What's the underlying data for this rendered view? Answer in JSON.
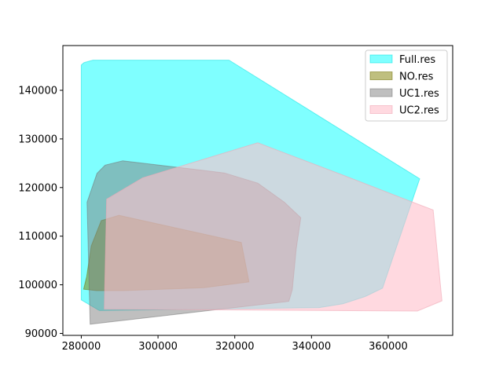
{
  "chart_data": {
    "type": "area",
    "title": "",
    "xlabel": "",
    "ylabel": "",
    "xlim": [
      275200,
      376800
    ],
    "ylim": [
      89600,
      149200
    ],
    "xticks": [
      {
        "value": 280000,
        "label": "280000"
      },
      {
        "value": 300000,
        "label": "300000"
      },
      {
        "value": 320000,
        "label": "320000"
      },
      {
        "value": 340000,
        "label": "340000"
      },
      {
        "value": 360000,
        "label": "360000"
      }
    ],
    "yticks": [
      {
        "value": 90000,
        "label": "90000"
      },
      {
        "value": 100000,
        "label": "100000"
      },
      {
        "value": 110000,
        "label": "110000"
      },
      {
        "value": 120000,
        "label": "120000"
      },
      {
        "value": 130000,
        "label": "130000"
      },
      {
        "value": 140000,
        "label": "140000"
      }
    ],
    "grid": false,
    "legend_position": "top-right",
    "series": [
      {
        "name": "Full.res",
        "fill": "#00ffff",
        "stroke": "#00e0e0",
        "alpha": 0.5,
        "points": [
          [
            280000,
            145200
          ],
          [
            280700,
            145700
          ],
          [
            283000,
            146200
          ],
          [
            318500,
            146200
          ],
          [
            368200,
            121800
          ],
          [
            358500,
            99300
          ],
          [
            354000,
            97600
          ],
          [
            348200,
            96100
          ],
          [
            341900,
            95300
          ],
          [
            284700,
            94700
          ],
          [
            280000,
            96900
          ]
        ]
      },
      {
        "name": "NO.res",
        "fill": "#808000",
        "stroke": "#6e6e00",
        "alpha": 0.5,
        "points": [
          [
            280600,
            99100
          ],
          [
            281400,
            101700
          ],
          [
            282600,
            108000
          ],
          [
            285200,
            113200
          ],
          [
            289800,
            114300
          ],
          [
            321700,
            108700
          ],
          [
            323700,
            100600
          ],
          [
            312000,
            99400
          ],
          [
            291000,
            98800
          ],
          [
            284000,
            98800
          ]
        ]
      },
      {
        "name": "UC1.res",
        "fill": "#808080",
        "stroke": "#707070",
        "alpha": 0.5,
        "points": [
          [
            281500,
            117000
          ],
          [
            284100,
            122900
          ],
          [
            286200,
            124600
          ],
          [
            290800,
            125500
          ],
          [
            317300,
            123000
          ],
          [
            326000,
            120900
          ],
          [
            332900,
            117000
          ],
          [
            337200,
            113800
          ],
          [
            336000,
            107300
          ],
          [
            335000,
            99000
          ],
          [
            334100,
            96600
          ],
          [
            282300,
            91900
          ]
        ]
      },
      {
        "name": "UC2.res",
        "fill": "#ffc0cb",
        "stroke": "#f0a8b6",
        "alpha": 0.6,
        "points": [
          [
            286600,
            117600
          ],
          [
            296000,
            122000
          ],
          [
            326000,
            129200
          ],
          [
            350000,
            122000
          ],
          [
            367000,
            116800
          ],
          [
            371700,
            115400
          ],
          [
            374000,
            96700
          ],
          [
            367600,
            94600
          ],
          [
            286000,
            95000
          ]
        ]
      }
    ]
  }
}
